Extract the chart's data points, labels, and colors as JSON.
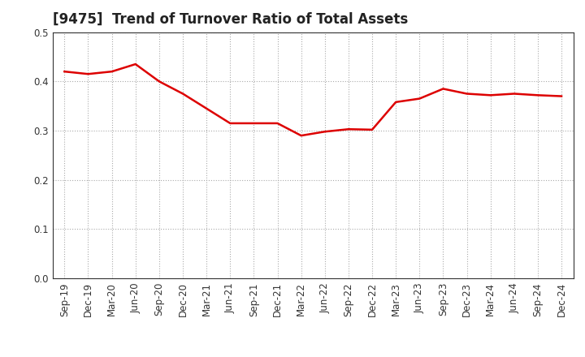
{
  "title": "[9475]  Trend of Turnover Ratio of Total Assets",
  "x_labels": [
    "Sep-19",
    "Dec-19",
    "Mar-20",
    "Jun-20",
    "Sep-20",
    "Dec-20",
    "Mar-21",
    "Jun-21",
    "Sep-21",
    "Dec-21",
    "Mar-22",
    "Jun-22",
    "Sep-22",
    "Dec-22",
    "Mar-23",
    "Jun-23",
    "Sep-23",
    "Dec-23",
    "Mar-24",
    "Jun-24",
    "Sep-24",
    "Dec-24"
  ],
  "y_values": [
    0.42,
    0.415,
    0.42,
    0.435,
    0.4,
    0.375,
    0.345,
    0.315,
    0.315,
    0.315,
    0.29,
    0.298,
    0.303,
    0.302,
    0.358,
    0.365,
    0.385,
    0.375,
    0.372,
    0.375,
    0.372,
    0.37
  ],
  "line_color": "#dd0000",
  "line_width": 1.8,
  "ylim": [
    0.0,
    0.5
  ],
  "yticks": [
    0.0,
    0.1,
    0.2,
    0.3,
    0.4,
    0.5
  ],
  "grid_color": "#aaaaaa",
  "grid_linestyle": "dotted",
  "background_color": "#ffffff",
  "title_fontsize": 12,
  "tick_fontsize": 8.5,
  "title_color": "#222222"
}
